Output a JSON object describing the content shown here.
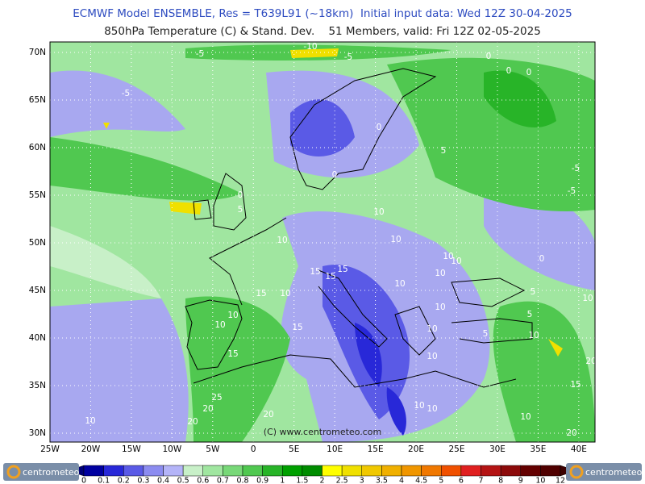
{
  "header": {
    "title": "ECMWF Model ENSEMBLE, Res = T639L91 (~18km)  Initial input data: Wed 12Z 30-04-2025",
    "subtitle": "850hPa Temperature (C) & Stand. Dev.    51 Members, valid: Fri 12Z 02-05-2025"
  },
  "map": {
    "lat_labels": [
      "70N",
      "65N",
      "60N",
      "55N",
      "50N",
      "45N",
      "40N",
      "35N",
      "30N"
    ],
    "lon_labels": [
      "25W",
      "20W",
      "15W",
      "10W",
      "5W",
      "0",
      "5E",
      "10E",
      "15E",
      "20E",
      "25E",
      "30E",
      "35E",
      "40E"
    ],
    "contour_labels": [
      "-10",
      "-5",
      "-5",
      "0",
      "0",
      "0",
      "-5",
      "0",
      "5",
      "0",
      "-5",
      "-5",
      "0",
      "5",
      "10",
      "10",
      "10",
      "10",
      "10",
      "0",
      "15",
      "15",
      "15",
      "10",
      "10",
      "15",
      "10",
      "5",
      "10",
      "10",
      "10",
      "5",
      "10",
      "15",
      "10",
      "5",
      "10",
      "15",
      "10",
      "20",
      "15",
      "25",
      "20",
      "10",
      "10",
      "10",
      "20",
      "20",
      "10",
      "20"
    ],
    "copyright": "(C) www.centrometeo.com"
  },
  "colorbar": {
    "labels": [
      "0",
      "0.1",
      "0.2",
      "0.3",
      "0.4",
      "0.5",
      "0.6",
      "0.7",
      "0.8",
      "0.9",
      "1",
      "1.5",
      "2",
      "2.5",
      "3",
      "3.5",
      "4",
      "4.5",
      "5",
      "6",
      "7",
      "8",
      "9",
      "10",
      "12"
    ],
    "colors": [
      "#0000a0",
      "#2828d8",
      "#5a5ae6",
      "#8c8cf0",
      "#b4b4f8",
      "#c8f0c8",
      "#a0e6a0",
      "#78d878",
      "#50c850",
      "#28b428",
      "#00a000",
      "#008c00",
      "#ffff00",
      "#f0e000",
      "#f0c800",
      "#f0b000",
      "#f09600",
      "#f07800",
      "#f05000",
      "#e02020",
      "#b41414",
      "#8c0a0a",
      "#640000",
      "#500000"
    ],
    "under_color": "#000078",
    "over_color": "#3c0000"
  },
  "logos": {
    "left": "centrometeo",
    "right": "centrometeo"
  }
}
